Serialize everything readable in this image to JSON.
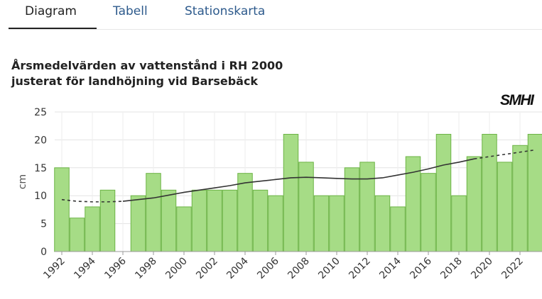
{
  "tabs": [
    {
      "label": "Diagram",
      "active": true
    },
    {
      "label": "Tabell",
      "active": false
    },
    {
      "label": "Stationskarta",
      "active": false
    }
  ],
  "logo": "SMHI",
  "chart_data": {
    "type": "bar",
    "title": [
      "Årsmedelvärden av vattenstånd i RH 2000",
      "justerat för landhöjning vid Barsebäck"
    ],
    "ylabel": "cm",
    "xlabel": "",
    "ylim": [
      0,
      25
    ],
    "yticks": [
      0,
      5,
      10,
      15,
      20,
      25
    ],
    "xticks": [
      1992,
      1994,
      1996,
      1998,
      2000,
      2002,
      2004,
      2006,
      2008,
      2010,
      2012,
      2014,
      2016,
      2018,
      2020,
      2022
    ],
    "grid": true,
    "bar_color": "#a6dc86",
    "bar_stroke": "#6cb345",
    "categories": [
      1992,
      1993,
      1994,
      1995,
      1996,
      1997,
      1998,
      1999,
      2000,
      2001,
      2002,
      2003,
      2004,
      2005,
      2006,
      2007,
      2008,
      2009,
      2010,
      2011,
      2012,
      2013,
      2014,
      2015,
      2016,
      2017,
      2018,
      2019,
      2020,
      2021,
      2022,
      2023
    ],
    "values": [
      15,
      6,
      8,
      11,
      null,
      10,
      14,
      11,
      8,
      11,
      11,
      11,
      14,
      11,
      10,
      21,
      16,
      10,
      10,
      15,
      16,
      10,
      8,
      17,
      14,
      21,
      10,
      17,
      21,
      16,
      19,
      21
    ],
    "trend": {
      "color": "#333333",
      "x": [
        1992,
        1993,
        1994,
        1995,
        1996,
        1997,
        1998,
        1999,
        2000,
        2001,
        2002,
        2003,
        2004,
        2005,
        2006,
        2007,
        2008,
        2009,
        2010,
        2011,
        2012,
        2013,
        2014,
        2015,
        2016,
        2017,
        2018,
        2019,
        2020,
        2021,
        2022,
        2023
      ],
      "y": [
        9.3,
        9.0,
        8.9,
        8.9,
        9.0,
        9.3,
        9.6,
        10.1,
        10.6,
        11.0,
        11.4,
        11.8,
        12.3,
        12.6,
        12.9,
        13.2,
        13.3,
        13.2,
        13.1,
        13.0,
        13.0,
        13.2,
        13.7,
        14.2,
        14.8,
        15.5,
        16.0,
        16.6,
        17.0,
        17.4,
        17.8,
        18.2
      ],
      "dashed_x_ranges": [
        [
          1992,
          1996
        ],
        [
          2019,
          2023
        ]
      ]
    }
  }
}
